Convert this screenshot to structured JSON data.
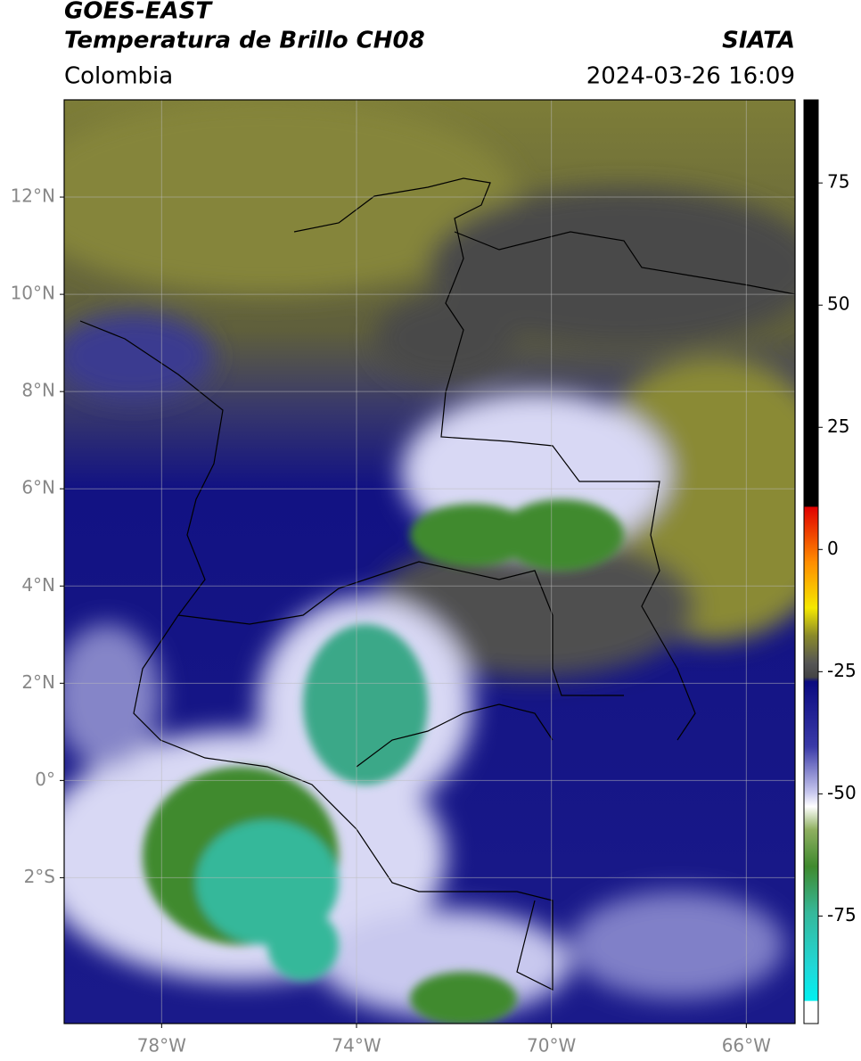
{
  "header": {
    "satellite": "GOES-EAST",
    "product": "Temperatura de Brillo CH08",
    "region": "Colombia",
    "source": "SIATA",
    "datetime": "2024-03-26 16:09"
  },
  "map": {
    "xlim": [
      -80,
      -65
    ],
    "ylim": [
      -5,
      14
    ],
    "xticks": [
      {
        "value": -78,
        "label": "78°W"
      },
      {
        "value": -74,
        "label": "74°W"
      },
      {
        "value": -70,
        "label": "70°W"
      },
      {
        "value": -66,
        "label": "66°W"
      }
    ],
    "yticks": [
      {
        "value": 12,
        "label": "12°N"
      },
      {
        "value": 10,
        "label": "10°N"
      },
      {
        "value": 8,
        "label": "8°N"
      },
      {
        "value": 6,
        "label": "6°N"
      },
      {
        "value": 4,
        "label": "4°N"
      },
      {
        "value": 2,
        "label": "2°N"
      },
      {
        "value": 0,
        "label": "0°"
      },
      {
        "value": -2,
        "label": "2°S"
      }
    ],
    "grid": true
  },
  "colorbar": {
    "lim": [
      -97,
      92
    ],
    "ticks": [
      75,
      50,
      25,
      0,
      -25,
      -50,
      -75
    ]
  }
}
